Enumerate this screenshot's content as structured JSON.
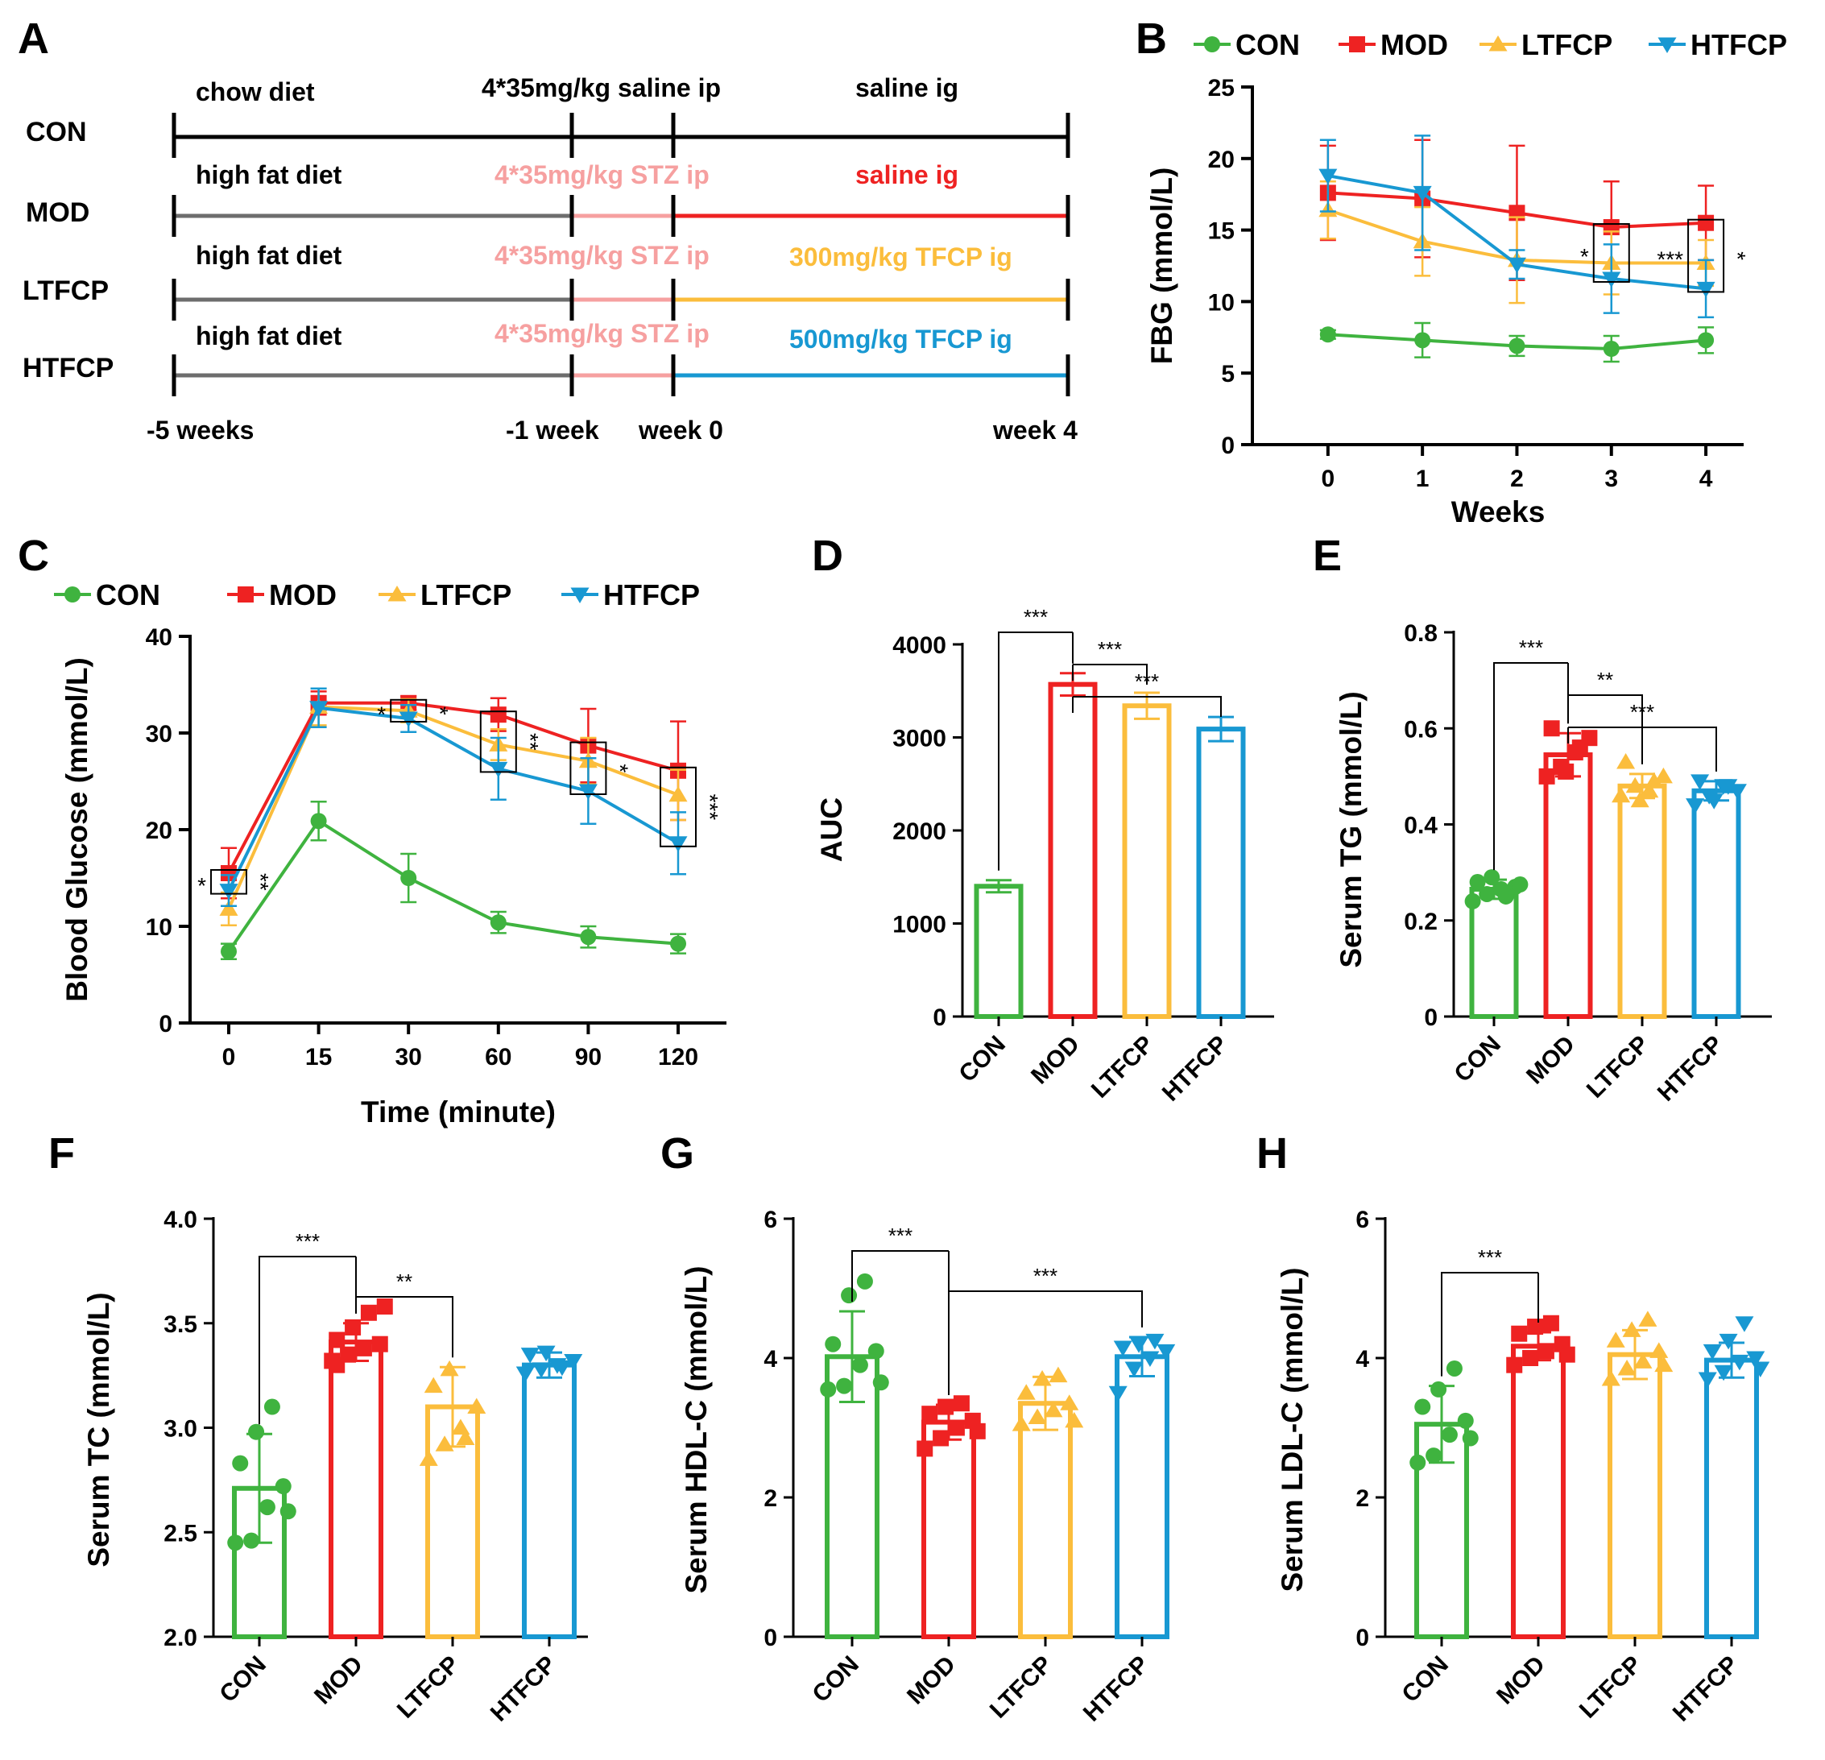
{
  "colors": {
    "CON": "#3fb33f",
    "MOD": "#ee2222",
    "LTFCP": "#fbbd3c",
    "HTFCP": "#1898d2",
    "STZ": "#f6a0a0",
    "chow": "#000000",
    "hfd": "#6d6d6d"
  },
  "groups": [
    "CON",
    "MOD",
    "LTFCP",
    "HTFCP"
  ],
  "scheme": {
    "letter": "A",
    "rows": [
      {
        "group": "CON",
        "phase1": "chow diet",
        "phase2": "4*35mg/kg saline ip",
        "phase3": "saline ig"
      },
      {
        "group": "MOD",
        "phase1": "high fat diet",
        "phase2": "4*35mg/kg STZ ip",
        "phase3": "saline ig"
      },
      {
        "group": "LTFCP",
        "phase1": "high fat diet",
        "phase2": "4*35mg/kg STZ ip",
        "phase3": "300mg/kg TFCP ig"
      },
      {
        "group": "HTFCP",
        "phase1": "high fat diet",
        "phase2": "4*35mg/kg STZ ip",
        "phase3": "500mg/kg TFCP ig"
      }
    ],
    "timeline": [
      "-5 weeks",
      "-1 week",
      "week 0",
      "week 4"
    ]
  },
  "chart_data": [
    {
      "id": "B",
      "type": "line",
      "title": "",
      "xlabel": "Weeks",
      "ylabel": "FBG (mmol/L)",
      "x": [
        0,
        1,
        2,
        3,
        4
      ],
      "xlim": [
        -0.8,
        4.4
      ],
      "ylim": [
        0,
        25
      ],
      "yticks": [
        0,
        5,
        10,
        15,
        20,
        25
      ],
      "xticks": [
        0,
        1,
        2,
        3,
        4
      ],
      "legend": [
        "CON",
        "MOD",
        "LTFCP",
        "HTFCP"
      ],
      "series": [
        {
          "name": "CON",
          "values": [
            7.7,
            7.3,
            6.9,
            6.7,
            7.3
          ],
          "err": [
            0.3,
            1.2,
            0.7,
            0.9,
            0.9
          ]
        },
        {
          "name": "MOD",
          "values": [
            17.6,
            17.2,
            16.2,
            15.2,
            15.5
          ],
          "err": [
            3.3,
            4.1,
            4.7,
            3.2,
            2.6
          ]
        },
        {
          "name": "LTFCP",
          "values": [
            16.4,
            14.2,
            12.9,
            12.7,
            12.7
          ],
          "err": [
            2.0,
            2.4,
            3.0,
            2.2,
            1.6
          ]
        },
        {
          "name": "HTFCP",
          "values": [
            18.8,
            17.6,
            12.6,
            11.6,
            10.9
          ],
          "err": [
            2.5,
            4.0,
            1.0,
            2.4,
            2.0
          ]
        }
      ],
      "annotations": [
        {
          "x": 3,
          "left": "*",
          "right": ""
        },
        {
          "x": 4,
          "left": "***",
          "right": "*"
        }
      ]
    },
    {
      "id": "C",
      "type": "line",
      "title": "",
      "xlabel": "Time (minute)",
      "ylabel": "Blood Glucose (mmol/L)",
      "x": [
        "0",
        "15",
        "30",
        "60",
        "90",
        "120"
      ],
      "ylim": [
        0,
        40
      ],
      "yticks": [
        0,
        10,
        20,
        30,
        40
      ],
      "legend": [
        "CON",
        "MOD",
        "LTFCP",
        "HTFCP"
      ],
      "series": [
        {
          "name": "CON",
          "values": [
            7.4,
            20.9,
            15.0,
            10.4,
            8.9,
            8.2
          ],
          "err": [
            0.8,
            2.0,
            2.5,
            1.1,
            1.1,
            1.0
          ]
        },
        {
          "name": "MOD",
          "values": [
            15.5,
            33.1,
            33.1,
            31.9,
            28.7,
            26.1
          ],
          "err": [
            2.6,
            1.2,
            0.7,
            1.7,
            3.8,
            5.1
          ]
        },
        {
          "name": "LTFCP",
          "values": [
            11.8,
            32.7,
            32.3,
            28.8,
            27.1,
            23.6
          ],
          "err": [
            1.7,
            1.9,
            1.2,
            1.6,
            2.4,
            2.6
          ]
        },
        {
          "name": "HTFCP",
          "values": [
            13.7,
            32.6,
            31.5,
            26.3,
            24.0,
            18.6
          ],
          "err": [
            1.6,
            2.0,
            1.4,
            3.2,
            3.4,
            3.2
          ]
        }
      ],
      "annotations": [
        {
          "x": "0",
          "left": "*",
          "right": "**"
        },
        {
          "x": "30",
          "left": "*",
          "right": "*"
        },
        {
          "x": "60",
          "left": "",
          "right": "**"
        },
        {
          "x": "90",
          "left": "",
          "right": "*"
        },
        {
          "x": "120",
          "left": "",
          "right": "***"
        }
      ]
    },
    {
      "id": "D",
      "type": "bar",
      "ylabel": "AUC",
      "categories": [
        "CON",
        "MOD",
        "LTFCP",
        "HTFCP"
      ],
      "values": [
        1400,
        3570,
        3340,
        3090
      ],
      "err": [
        65,
        120,
        140,
        130
      ],
      "ylim": [
        0,
        4000
      ],
      "yticks": [
        0,
        1000,
        2000,
        3000,
        4000
      ],
      "points": [],
      "comparisons": [
        {
          "from": 1,
          "to": 0,
          "label": "***",
          "level": 0
        },
        {
          "from": 1,
          "to": 2,
          "label": "***",
          "level": 1
        },
        {
          "from": 1,
          "to": 3,
          "label": "***",
          "level": 2
        }
      ]
    },
    {
      "id": "E",
      "type": "bar",
      "ylabel": "Serum TG (mmol/L)",
      "categories": [
        "CON",
        "MOD",
        "LTFCP",
        "HTFCP"
      ],
      "values": [
        0.265,
        0.545,
        0.48,
        0.47
      ],
      "err": [
        0.02,
        0.045,
        0.025,
        0.02
      ],
      "ylim": [
        0,
        0.8
      ],
      "yticks": [
        0,
        0.2,
        0.4,
        0.6,
        0.8
      ],
      "ytick_labels": [
        "0",
        "0.2",
        "0.4",
        "0.6",
        "0.8"
      ],
      "points": [
        [
          0.24,
          0.255,
          0.265,
          0.27,
          0.28,
          0.29,
          0.25,
          0.275
        ],
        [
          0.5,
          0.52,
          0.55,
          0.58,
          0.6,
          0.51,
          0.56
        ],
        [
          0.46,
          0.48,
          0.47,
          0.5,
          0.53,
          0.45,
          0.49
        ],
        [
          0.44,
          0.46,
          0.48,
          0.47,
          0.49,
          0.45,
          0.48
        ]
      ],
      "comparisons": [
        {
          "from": 1,
          "to": 0,
          "label": "***",
          "level": 0
        },
        {
          "from": 1,
          "to": 2,
          "label": "**",
          "level": 1
        },
        {
          "from": 1,
          "to": 3,
          "label": "***",
          "level": 2
        }
      ]
    },
    {
      "id": "F",
      "type": "bar",
      "ylabel": "Serum TC (mmol/L)",
      "categories": [
        "CON",
        "MOD",
        "LTFCP",
        "HTFCP"
      ],
      "values": [
        2.71,
        3.41,
        3.1,
        3.3
      ],
      "err": [
        0.26,
        0.09,
        0.19,
        0.06
      ],
      "ylim": [
        2.0,
        4.0
      ],
      "yticks": [
        2.0,
        2.5,
        3.0,
        3.5,
        4.0
      ],
      "ytick_labels": [
        "2.0",
        "2.5",
        "3.0",
        "3.5",
        "4.0"
      ],
      "points": [
        [
          2.45,
          2.46,
          2.62,
          2.72,
          2.83,
          2.98,
          3.1,
          2.6
        ],
        [
          3.32,
          3.35,
          3.38,
          3.4,
          3.42,
          3.48,
          3.55,
          3.58,
          3.3
        ],
        [
          2.85,
          2.92,
          3.0,
          3.1,
          3.2,
          3.28,
          2.95
        ],
        [
          3.26,
          3.28,
          3.3,
          3.32,
          3.35,
          3.36,
          3.29
        ]
      ],
      "comparisons": [
        {
          "from": 1,
          "to": 0,
          "label": "***",
          "level": 0
        },
        {
          "from": 1,
          "to": 2,
          "label": "**",
          "level": 1
        }
      ]
    },
    {
      "id": "G",
      "type": "bar",
      "ylabel": "Serum HDL-C (mmol/L)",
      "categories": [
        "CON",
        "MOD",
        "LTFCP",
        "HTFCP"
      ],
      "values": [
        4.02,
        3.08,
        3.35,
        4.02
      ],
      "err": [
        0.65,
        0.25,
        0.38,
        0.28
      ],
      "ylim": [
        0,
        6
      ],
      "yticks": [
        0,
        2,
        4,
        6
      ],
      "ytick_labels": [
        "0",
        "2",
        "4",
        "6"
      ],
      "points": [
        [
          3.55,
          3.6,
          3.9,
          4.1,
          4.2,
          4.9,
          5.1,
          3.65
        ],
        [
          2.7,
          2.85,
          3.0,
          3.1,
          3.2,
          3.3,
          3.35,
          2.95
        ],
        [
          3.05,
          3.15,
          3.25,
          3.35,
          3.5,
          3.7,
          3.75,
          3.1
        ],
        [
          3.5,
          3.85,
          4.0,
          4.1,
          4.15,
          4.2,
          4.25
        ]
      ],
      "comparisons": [
        {
          "from": 1,
          "to": 0,
          "label": "***",
          "level": 0
        },
        {
          "from": 1,
          "to": 3,
          "label": "***",
          "level": 1
        }
      ]
    },
    {
      "id": "H",
      "type": "bar",
      "ylabel": "Serum LDL-C (mmol/L)",
      "categories": [
        "CON",
        "MOD",
        "LTFCP",
        "HTFCP"
      ],
      "values": [
        3.05,
        4.17,
        4.05,
        3.97
      ],
      "err": [
        0.55,
        0.2,
        0.35,
        0.25
      ],
      "ylim": [
        0,
        6
      ],
      "yticks": [
        0,
        2,
        4,
        6
      ],
      "ytick_labels": [
        "0",
        "2",
        "4",
        "6"
      ],
      "points": [
        [
          2.5,
          2.6,
          2.9,
          3.1,
          3.3,
          3.55,
          3.85,
          2.85
        ],
        [
          3.9,
          4.0,
          4.1,
          4.2,
          4.35,
          4.45,
          4.5,
          4.05
        ],
        [
          3.7,
          3.85,
          3.95,
          4.1,
          4.25,
          4.4,
          4.55,
          3.9
        ],
        [
          3.7,
          3.8,
          3.95,
          4.0,
          4.1,
          4.25,
          4.5,
          3.85
        ]
      ],
      "comparisons": [
        {
          "from": 1,
          "to": 0,
          "label": "***",
          "level": 0
        }
      ]
    }
  ]
}
